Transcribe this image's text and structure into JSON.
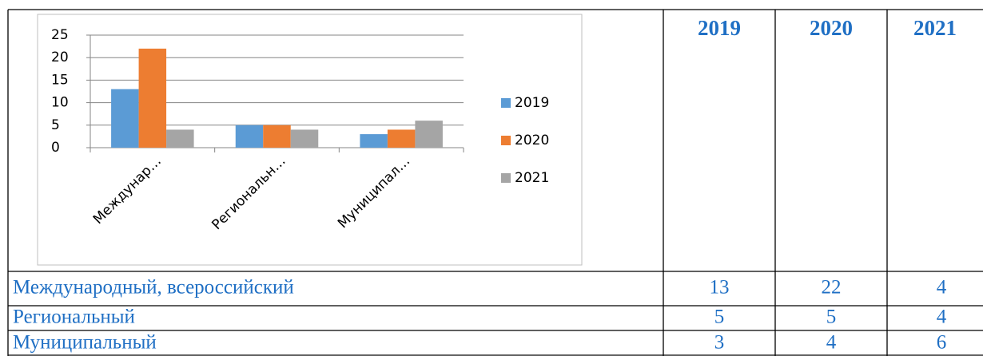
{
  "chart": {
    "type": "bar",
    "categories": [
      "Междунар…",
      "Региональн…",
      "Муниципал…"
    ],
    "series": [
      {
        "name": "2019",
        "color": "#5b9bd5",
        "values": [
          13,
          5,
          3
        ]
      },
      {
        "name": "2020",
        "color": "#ed7d31",
        "values": [
          22,
          5,
          4
        ]
      },
      {
        "name": "2021",
        "color": "#a5a5a5",
        "values": [
          4,
          4,
          6
        ]
      }
    ],
    "ylim": [
      0,
      25
    ],
    "yticks": [
      0,
      5,
      10,
      15,
      20,
      25
    ],
    "grid": true
  },
  "table": {
    "header": [
      "2019",
      "2020",
      "2021"
    ],
    "rows": [
      [
        "Международный, всероссийский",
        13,
        22,
        4
      ],
      [
        "Региональный",
        5,
        5,
        4
      ],
      [
        "Муниципальный",
        3,
        4,
        6
      ]
    ]
  }
}
